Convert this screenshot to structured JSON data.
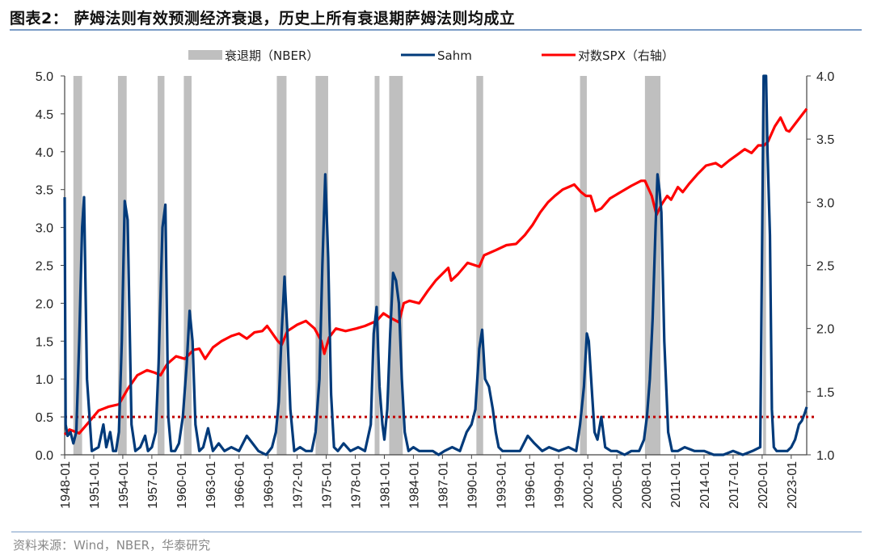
{
  "header": {
    "title": "图表2：  萨姆法则有效预测经济衰退，历史上所有衰退期萨姆法则均成立"
  },
  "footer": {
    "source": "资料来源：Wind，NBER，华泰研究"
  },
  "legend": {
    "items": [
      {
        "label": "衰退期（NBER）",
        "type": "band",
        "color": "#bfbfbf"
      },
      {
        "label": "Sahm",
        "type": "line",
        "color": "#003a7a"
      },
      {
        "label": "对数SPX（右轴）",
        "type": "line",
        "color": "#ff0000"
      }
    ]
  },
  "colors": {
    "recession": "#bfbfbf",
    "sahm": "#003a7a",
    "spx": "#ff0000",
    "threshold": "#c00000",
    "axis": "#444444",
    "rule": "#7a9cc6"
  },
  "chart_data": {
    "type": "line",
    "title": "萨姆法则有效预测经济衰退，历史上所有衰退期萨姆法则均成立",
    "xlabel": "",
    "ylabel_left": "Sahm",
    "ylabel_right": "对数SPX（右轴）",
    "ylim_left": [
      0.0,
      5.0
    ],
    "ylim_right": [
      1.0,
      4.0
    ],
    "yticks_left": [
      "0.0",
      "0.5",
      "1.0",
      "1.5",
      "2.0",
      "2.5",
      "3.0",
      "3.5",
      "4.0",
      "4.5",
      "5.0"
    ],
    "yticks_right": [
      "1.0",
      "1.5",
      "2.0",
      "2.5",
      "3.0",
      "3.5",
      "4.0"
    ],
    "xticks": [
      "1948-01",
      "1951-01",
      "1954-01",
      "1957-01",
      "1960-01",
      "1963-01",
      "1966-01",
      "1969-01",
      "1972-01",
      "1975-01",
      "1978-01",
      "1981-01",
      "1984-01",
      "1987-01",
      "1990-01",
      "1993-01",
      "1996-01",
      "1999-01",
      "2002-01",
      "2005-01",
      "2008-01",
      "2011-01",
      "2014-01",
      "2017-01",
      "2020-01",
      "2023-01"
    ],
    "xrange": [
      1948.0,
      2024.6
    ],
    "grid": false,
    "legend_position": "top",
    "threshold": {
      "value": 0.5,
      "axis": "left",
      "style": "dotted"
    },
    "recessions": [
      [
        1948.9,
        1949.8
      ],
      [
        1953.5,
        1954.4
      ],
      [
        1957.6,
        1958.3
      ],
      [
        1960.3,
        1961.1
      ],
      [
        1969.9,
        1970.9
      ],
      [
        1973.9,
        1975.2
      ],
      [
        1980.0,
        1980.5
      ],
      [
        1981.5,
        1982.9
      ],
      [
        1990.5,
        1991.2
      ],
      [
        2001.2,
        2001.9
      ],
      [
        2007.9,
        2009.5
      ],
      [
        2020.1,
        2020.4
      ]
    ],
    "series": [
      {
        "name": "Sahm",
        "axis": "left",
        "x": [
          1948.0,
          1948.1,
          1948.3,
          1948.6,
          1948.9,
          1949.2,
          1949.5,
          1949.8,
          1950.0,
          1950.3,
          1950.8,
          1951.5,
          1952.0,
          1952.3,
          1952.7,
          1953.0,
          1953.3,
          1953.6,
          1953.9,
          1954.2,
          1954.5,
          1954.9,
          1955.3,
          1955.8,
          1956.3,
          1956.6,
          1957.0,
          1957.4,
          1957.7,
          1958.1,
          1958.4,
          1958.7,
          1959.0,
          1959.4,
          1959.8,
          1960.2,
          1960.6,
          1960.9,
          1961.2,
          1961.5,
          1961.9,
          1962.3,
          1962.8,
          1963.3,
          1963.9,
          1964.5,
          1965.2,
          1966.0,
          1966.8,
          1967.4,
          1968.0,
          1968.8,
          1969.4,
          1969.8,
          1970.1,
          1970.4,
          1970.7,
          1971.0,
          1971.3,
          1971.7,
          1972.3,
          1972.9,
          1973.5,
          1973.9,
          1974.3,
          1974.6,
          1974.9,
          1975.2,
          1975.5,
          1975.8,
          1976.2,
          1976.8,
          1977.5,
          1978.3,
          1979.0,
          1979.6,
          1979.9,
          1980.2,
          1980.5,
          1980.8,
          1981.0,
          1981.3,
          1981.6,
          1981.9,
          1982.2,
          1982.5,
          1982.8,
          1983.1,
          1983.5,
          1984.0,
          1984.6,
          1985.3,
          1986.0,
          1986.6,
          1987.2,
          1988.0,
          1988.8,
          1989.5,
          1990.0,
          1990.4,
          1990.8,
          1991.1,
          1991.4,
          1991.8,
          1992.2,
          1992.5,
          1992.8,
          1993.2,
          1994.0,
          1995.0,
          1995.8,
          1996.5,
          1997.3,
          1998.0,
          1999.0,
          2000.0,
          2000.8,
          2001.2,
          2001.6,
          2001.9,
          2002.1,
          2002.4,
          2002.7,
          2003.0,
          2003.4,
          2003.8,
          2004.4,
          2005.0,
          2005.8,
          2006.5,
          2007.3,
          2007.8,
          2008.1,
          2008.4,
          2008.7,
          2009.0,
          2009.2,
          2009.4,
          2009.6,
          2009.9,
          2010.3,
          2010.7,
          2011.3,
          2012.0,
          2013.0,
          2014.0,
          2015.0,
          2016.0,
          2017.0,
          2018.0,
          2019.0,
          2019.8,
          2020.15,
          2020.25,
          2020.4,
          2020.55,
          2020.8,
          2021.0,
          2021.2,
          2021.5,
          2022.0,
          2022.6,
          2023.0,
          2023.4,
          2023.8,
          2024.1,
          2024.4,
          2024.6
        ],
        "values": [
          3.4,
          0.4,
          0.25,
          0.3,
          0.15,
          0.3,
          1.5,
          3.0,
          3.4,
          1.0,
          0.05,
          0.1,
          0.4,
          0.1,
          0.3,
          0.05,
          0.05,
          0.3,
          1.5,
          3.35,
          3.1,
          0.4,
          0.05,
          0.1,
          0.25,
          0.05,
          0.1,
          0.3,
          1.2,
          3.0,
          3.3,
          0.5,
          0.05,
          0.05,
          0.15,
          0.5,
          1.2,
          1.9,
          1.5,
          0.4,
          0.05,
          0.1,
          0.35,
          0.05,
          0.15,
          0.05,
          0.1,
          0.05,
          0.25,
          0.15,
          0.05,
          0.0,
          0.1,
          0.3,
          0.7,
          1.6,
          2.35,
          1.6,
          0.6,
          0.05,
          0.1,
          0.05,
          0.05,
          0.3,
          1.0,
          2.5,
          3.7,
          2.6,
          0.8,
          0.1,
          0.05,
          0.15,
          0.05,
          0.1,
          0.05,
          0.4,
          1.6,
          1.95,
          0.9,
          0.4,
          0.2,
          0.6,
          1.6,
          2.4,
          2.3,
          2.0,
          1.0,
          0.3,
          0.05,
          0.1,
          0.05,
          0.05,
          0.05,
          0.0,
          0.05,
          0.1,
          0.05,
          0.3,
          0.4,
          0.6,
          1.4,
          1.65,
          1.0,
          0.9,
          0.6,
          0.3,
          0.1,
          0.05,
          0.05,
          0.05,
          0.25,
          0.15,
          0.05,
          0.1,
          0.05,
          0.1,
          0.05,
          0.4,
          0.9,
          1.6,
          1.5,
          0.9,
          0.3,
          0.2,
          0.5,
          0.1,
          0.05,
          0.05,
          0.0,
          0.05,
          0.05,
          0.2,
          0.5,
          1.0,
          1.8,
          3.0,
          3.7,
          3.5,
          3.2,
          1.5,
          0.3,
          0.05,
          0.05,
          0.1,
          0.05,
          0.05,
          0.0,
          0.0,
          0.05,
          0.0,
          0.05,
          0.1,
          5.0,
          5.0,
          5.0,
          4.0,
          2.9,
          0.6,
          0.1,
          0.05,
          0.05,
          0.05,
          0.1,
          0.2,
          0.4,
          0.45,
          0.55,
          0.63
        ]
      },
      {
        "name": "对数SPX（右轴）",
        "axis": "right",
        "x": [
          1948.0,
          1948.5,
          1949.5,
          1950.5,
          1951.5,
          1952.5,
          1953.6,
          1954.5,
          1955.5,
          1956.5,
          1957.3,
          1957.9,
          1958.6,
          1959.5,
          1960.4,
          1961.3,
          1961.9,
          1962.5,
          1963.3,
          1964.2,
          1965.2,
          1966.0,
          1966.8,
          1967.6,
          1968.4,
          1968.9,
          1970.0,
          1970.4,
          1971.0,
          1972.0,
          1972.9,
          1973.8,
          1974.5,
          1974.8,
          1975.3,
          1976.0,
          1977.0,
          1978.1,
          1979.0,
          1980.2,
          1980.9,
          1981.5,
          1982.5,
          1983.0,
          1983.6,
          1984.6,
          1985.5,
          1986.3,
          1987.6,
          1987.9,
          1988.6,
          1989.6,
          1990.8,
          1991.3,
          1992.5,
          1993.6,
          1994.6,
          1995.5,
          1996.3,
          1997.1,
          1997.9,
          1998.6,
          1999.4,
          2000.0,
          2000.6,
          2001.3,
          2001.8,
          2002.3,
          2002.8,
          2003.4,
          2004.3,
          2005.4,
          2006.5,
          2007.5,
          2007.9,
          2008.6,
          2009.1,
          2009.6,
          2010.2,
          2010.6,
          2011.3,
          2011.8,
          2012.5,
          2013.3,
          2014.2,
          2015.2,
          2015.8,
          2016.6,
          2017.5,
          2018.2,
          2018.9,
          2019.6,
          2020.2,
          2020.6,
          2021.3,
          2021.9,
          2022.5,
          2022.8,
          2023.4,
          2024.0,
          2024.6
        ],
        "values": [
          1.16,
          1.2,
          1.17,
          1.26,
          1.35,
          1.38,
          1.4,
          1.52,
          1.63,
          1.67,
          1.65,
          1.63,
          1.72,
          1.78,
          1.76,
          1.83,
          1.84,
          1.76,
          1.85,
          1.9,
          1.94,
          1.96,
          1.92,
          1.97,
          1.98,
          2.02,
          1.9,
          1.87,
          1.98,
          2.03,
          2.06,
          2.0,
          1.9,
          1.8,
          1.93,
          2.0,
          1.98,
          2.0,
          2.02,
          2.06,
          2.12,
          2.09,
          2.05,
          2.2,
          2.22,
          2.2,
          2.3,
          2.38,
          2.48,
          2.38,
          2.43,
          2.52,
          2.49,
          2.58,
          2.62,
          2.66,
          2.67,
          2.74,
          2.82,
          2.92,
          3.0,
          3.05,
          3.1,
          3.12,
          3.14,
          3.08,
          3.05,
          3.05,
          2.93,
          2.95,
          3.03,
          3.08,
          3.13,
          3.17,
          3.17,
          3.05,
          2.9,
          2.98,
          3.05,
          3.02,
          3.12,
          3.08,
          3.15,
          3.22,
          3.29,
          3.31,
          3.28,
          3.33,
          3.38,
          3.42,
          3.39,
          3.45,
          3.45,
          3.48,
          3.6,
          3.67,
          3.57,
          3.56,
          3.62,
          3.68,
          3.74
        ]
      }
    ]
  }
}
